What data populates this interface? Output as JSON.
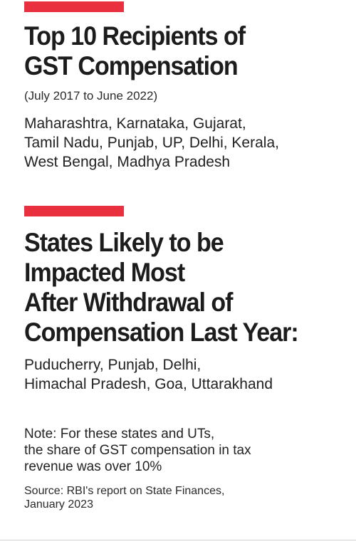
{
  "sections": [
    {
      "accent_color": "#e8303f",
      "heading": "Top 10 Recipients of\nGST Compensation",
      "subtitle": "(July 2017 to June 2022)",
      "list": "Maharashtra, Karnataka, Gujarat,\nTamil Nadu, Punjab, UP, Delhi, Kerala,\nWest Bengal, Madhya Pradesh"
    },
    {
      "accent_color": "#e8303f",
      "heading": "States Likely to be\nImpacted Most\nAfter Withdrawal of\nCompensation Last Year:",
      "list": "Puducherry, Punjab, Delhi,\nHimachal Pradesh, Goa, Uttarakhand"
    }
  ],
  "note": "Note: For these states and UTs,\nthe share of GST compensation in tax\nrevenue was over 10%",
  "source": "Source: RBI's report on State Finances,\nJanuary 2023"
}
